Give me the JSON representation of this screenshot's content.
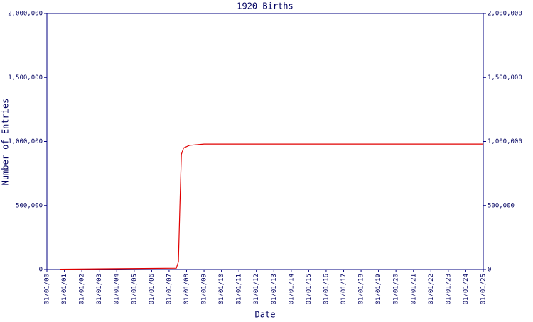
{
  "chart_data": {
    "type": "line",
    "title": "1920 Births",
    "x_label": "Date",
    "y_label": "Number of Entries",
    "xlim": [
      "2000-01-01",
      "2025-01-01"
    ],
    "xticks": [
      {
        "value": "2000-01-01",
        "label": "01/01/00"
      },
      {
        "value": "2001-01-01",
        "label": "01/01/01"
      },
      {
        "value": "2002-01-01",
        "label": "01/01/02"
      },
      {
        "value": "2003-01-01",
        "label": "01/01/03"
      },
      {
        "value": "2004-01-01",
        "label": "01/01/04"
      },
      {
        "value": "2005-01-01",
        "label": "01/01/05"
      },
      {
        "value": "2006-01-01",
        "label": "01/01/06"
      },
      {
        "value": "2007-01-01",
        "label": "01/01/07"
      },
      {
        "value": "2008-01-01",
        "label": "01/01/08"
      },
      {
        "value": "2009-01-01",
        "label": "01/01/09"
      },
      {
        "value": "2010-01-01",
        "label": "01/01/10"
      },
      {
        "value": "2011-01-01",
        "label": "01/01/11"
      },
      {
        "value": "2012-01-01",
        "label": "01/01/12"
      },
      {
        "value": "2013-01-01",
        "label": "01/01/13"
      },
      {
        "value": "2014-01-01",
        "label": "01/01/14"
      },
      {
        "value": "2015-01-01",
        "label": "01/01/15"
      },
      {
        "value": "2016-01-01",
        "label": "01/01/16"
      },
      {
        "value": "2017-01-01",
        "label": "01/01/17"
      },
      {
        "value": "2018-01-01",
        "label": "01/01/18"
      },
      {
        "value": "2019-01-01",
        "label": "01/01/19"
      },
      {
        "value": "2020-01-01",
        "label": "01/01/20"
      },
      {
        "value": "2021-01-01",
        "label": "01/01/21"
      },
      {
        "value": "2022-01-01",
        "label": "01/01/22"
      },
      {
        "value": "2023-01-01",
        "label": "01/01/23"
      },
      {
        "value": "2024-01-01",
        "label": "01/01/24"
      },
      {
        "value": "2025-01-01",
        "label": "01/01/25"
      }
    ],
    "ylim": [
      0,
      2000000
    ],
    "yticks": [
      0,
      {
        "value": 500000,
        "label": "500,000"
      },
      {
        "value": 1000000,
        "label": "1,000,000"
      },
      {
        "value": 1500000,
        "label": "1,500,000"
      },
      {
        "value": 2000000,
        "label": "2,000,000"
      }
    ],
    "right_axis": true,
    "series": [
      {
        "color": "#e00000",
        "x": [
          "2000-10-01",
          "2003-01-01",
          "2007-06-01",
          "2007-07-15",
          "2007-08-15",
          "2007-09-15",
          "2007-11-01",
          "2008-03-01",
          "2009-01-01",
          "2025-01-01"
        ],
        "values": [
          2000,
          5000,
          10000,
          60000,
          500000,
          900000,
          950000,
          970000,
          980000,
          980000
        ]
      }
    ]
  }
}
